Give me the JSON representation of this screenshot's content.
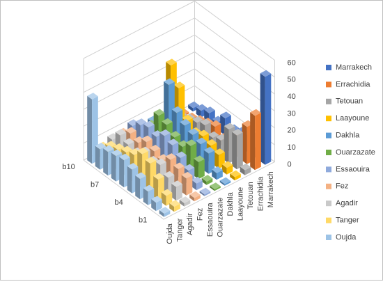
{
  "chart_data": {
    "type": "bar3d",
    "categories": [
      "b1",
      null,
      null,
      "b4",
      null,
      null,
      "b7",
      null,
      null,
      "b10"
    ],
    "zlim": [
      0,
      60
    ],
    "zticks": [
      0,
      10,
      20,
      30,
      40,
      50,
      60
    ],
    "grid": true,
    "legend": "right",
    "series": [
      {
        "name": "Oujda",
        "color": "#9dc3e6",
        "values": [
          2,
          5,
          8,
          12,
          14,
          16,
          15,
          14,
          12,
          38
        ]
      },
      {
        "name": "Tanger",
        "color": "#ffd966",
        "values": [
          3,
          6,
          12,
          18,
          20,
          16,
          14,
          12,
          10,
          6
        ]
      },
      {
        "name": "Agadir",
        "color": "#c9c9c9",
        "values": [
          2,
          8,
          10,
          14,
          12,
          14,
          10,
          12,
          14,
          8
        ]
      },
      {
        "name": "Fez",
        "color": "#f4b183",
        "values": [
          2,
          10,
          12,
          14,
          10,
          12,
          14,
          10,
          12,
          8
        ]
      },
      {
        "name": "Essaouira",
        "color": "#8faadc",
        "values": [
          1,
          4,
          8,
          12,
          16,
          18,
          14,
          16,
          14,
          10
        ]
      },
      {
        "name": "Ouarzazate",
        "color": "#70ad47",
        "values": [
          1,
          2,
          10,
          16,
          12,
          14,
          18,
          20,
          10,
          4
        ]
      },
      {
        "name": "Dakhla",
        "color": "#5b9bd5",
        "values": [
          1,
          4,
          12,
          14,
          16,
          18,
          22,
          35,
          8,
          6
        ]
      },
      {
        "name": "Laayoune",
        "color": "#ffc000",
        "values": [
          2,
          4,
          8,
          10,
          12,
          10,
          14,
          30,
          40,
          2
        ]
      },
      {
        "name": "Tetouan",
        "color": "#a5a5a5",
        "values": [
          3,
          20,
          20,
          10,
          8,
          12,
          10,
          8,
          6,
          2
        ]
      },
      {
        "name": "Errachidia",
        "color": "#ed7d31",
        "values": [
          32,
          22,
          12,
          10,
          4,
          8,
          6,
          4,
          2,
          1
        ]
      },
      {
        "name": "Marrakech",
        "color": "#4472c4",
        "values": [
          52,
          6,
          10,
          8,
          6,
          10,
          4,
          6,
          4,
          2
        ]
      }
    ]
  }
}
